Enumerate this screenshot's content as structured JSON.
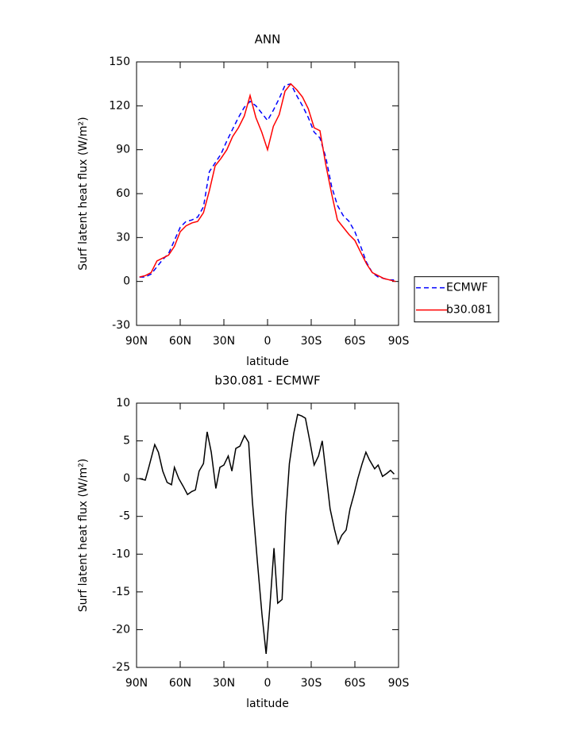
{
  "chart_data": [
    {
      "type": "line",
      "title": "ANN",
      "xlabel": "latitude",
      "ylabel": "Surf latent heat flux (W/m²)",
      "x": [
        88,
        84,
        80,
        76,
        72,
        68,
        64,
        60,
        56,
        52,
        48,
        44,
        40,
        36,
        32,
        28,
        24,
        20,
        16,
        12,
        8,
        4,
        0,
        -4,
        -8,
        -12,
        -16,
        -20,
        -24,
        -28,
        -32,
        -36,
        -40,
        -44,
        -48,
        -52,
        -56,
        -60,
        -64,
        -68,
        -72,
        -76,
        -80,
        -84,
        -88
      ],
      "series": [
        {
          "name": "ECMWF",
          "color": "#0000ff",
          "style": "dashed",
          "values": [
            3,
            3,
            5,
            10,
            15,
            19,
            28,
            37,
            41,
            42,
            44,
            51,
            75,
            81,
            87,
            96,
            104,
            112,
            119,
            123,
            120,
            115,
            110,
            117,
            125,
            134,
            135,
            127,
            120,
            112,
            102,
            98,
            85,
            65,
            52,
            45,
            41,
            34,
            24,
            13,
            6,
            3,
            2,
            1,
            1
          ]
        },
        {
          "name": "b30.081",
          "color": "#ff0000",
          "style": "solid",
          "values": [
            3,
            4,
            6,
            14,
            16,
            18,
            24,
            34,
            38,
            40,
            41,
            47,
            62,
            79,
            84,
            90,
            99,
            105,
            113,
            127,
            112,
            102,
            90,
            106,
            114,
            130,
            135,
            131,
            126,
            118,
            105,
            103,
            80,
            60,
            42,
            37,
            32,
            28,
            20,
            12,
            6,
            4,
            2,
            1,
            0
          ]
        }
      ],
      "xlim": [
        90,
        -90
      ],
      "xticks": [
        {
          "value": 90,
          "label": "90N"
        },
        {
          "value": 60,
          "label": "60N"
        },
        {
          "value": 30,
          "label": "30N"
        },
        0,
        {
          "value": -30,
          "label": "30S"
        },
        {
          "value": -60,
          "label": "60S"
        },
        {
          "value": -90,
          "label": "90S"
        }
      ],
      "ylim": [
        -30,
        150
      ],
      "yticks": [
        150,
        120,
        90,
        60,
        30,
        0,
        -30
      ],
      "legend": "right"
    },
    {
      "type": "line",
      "title": "b30.081 - ECMWF",
      "xlabel": "latitude",
      "ylabel": "Surf latent heat flux (W/m²)",
      "x": [
        88,
        84,
        81.6,
        77.5,
        75,
        72,
        69,
        66,
        64,
        61,
        58,
        55,
        52,
        49.6,
        47,
        44,
        41.5,
        38.7,
        35.5,
        32.7,
        30,
        27,
        24.5,
        21.8,
        19,
        15.8,
        13,
        10.4,
        7,
        3.8,
        1,
        -1.6,
        -4.4,
        -7,
        -10,
        -12.5,
        -15,
        -18,
        -20.7,
        -23.5,
        -26,
        -29,
        -32,
        -35,
        -37.6,
        -40,
        -43,
        -46,
        -48.5,
        -51,
        -54,
        -56.7,
        -59.5,
        -62,
        -65,
        -67.6,
        -70,
        -73.6,
        -76,
        -79,
        -82,
        -84.5,
        -87
      ],
      "values": [
        0,
        -0.2,
        1.5,
        4.5,
        3.5,
        1,
        -0.5,
        -0.8,
        1.5,
        0,
        -1,
        -2.1,
        -1.7,
        -1.5,
        1,
        2,
        6.2,
        3.5,
        -1.3,
        1.5,
        1.8,
        3,
        1,
        4,
        4.3,
        5.7,
        4.8,
        -3,
        -11,
        -18,
        -23.2,
        -17,
        -9.2,
        -16.5,
        -16,
        -5,
        2,
        6,
        8.5,
        8.3,
        8,
        5,
        1.8,
        3,
        5,
        1,
        -4,
        -6.7,
        -8.6,
        -7.5,
        -6.8,
        -4,
        -2,
        0,
        2,
        3.5,
        2.5,
        1.3,
        1.8,
        0.3,
        0.7,
        1.1,
        0.6
      ],
      "color": "#000000",
      "xlim": [
        90,
        -90
      ],
      "xticks": [
        {
          "value": 90,
          "label": "90N"
        },
        {
          "value": 60,
          "label": "60N"
        },
        {
          "value": 30,
          "label": "30N"
        },
        0,
        {
          "value": -30,
          "label": "30S"
        },
        {
          "value": -60,
          "label": "60S"
        },
        {
          "value": -90,
          "label": "90S"
        }
      ],
      "ylim": [
        -25,
        10
      ],
      "yticks": [
        10,
        5,
        0,
        -5,
        -10,
        -15,
        -20,
        -25
      ]
    }
  ]
}
